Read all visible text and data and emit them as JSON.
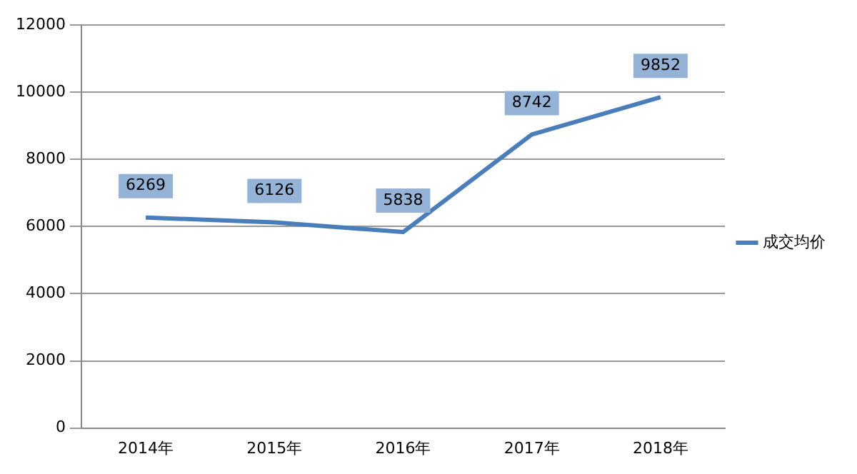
{
  "chart_data": {
    "type": "line",
    "categories": [
      "2014年",
      "2015年",
      "2016年",
      "2017年",
      "2018年"
    ],
    "series": [
      {
        "name": "成交均价",
        "color": "#4a7ebb",
        "values": [
          6269,
          6126,
          5838,
          8742,
          9852
        ]
      }
    ],
    "ylim": [
      0,
      12000
    ],
    "yticks": [
      0,
      2000,
      4000,
      6000,
      8000,
      10000,
      12000
    ],
    "grid": "y",
    "legend": "right",
    "marker": "none",
    "line_style": "solid",
    "data_labels": true
  }
}
